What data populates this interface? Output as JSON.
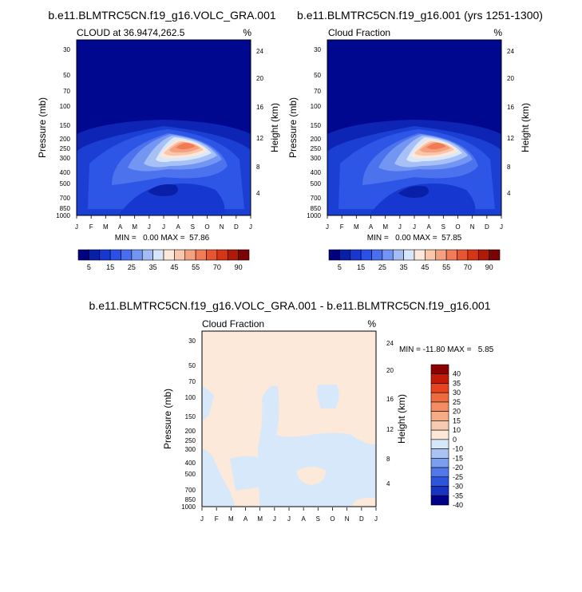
{
  "chart_data": [
    {
      "type": "contour",
      "title": "b.e11.BLMTRC5CN.f19_g16.VOLC_GRA.001",
      "subtitle_left": "CLOUD at 36.9474,262.5",
      "subtitle_right": "%",
      "ylabel": "Pressure (mb)",
      "ylabel_right": "Height (km)",
      "stats": "MIN =   0.00 MAX =  57.86",
      "min": 0.0,
      "max": 57.86
    },
    {
      "type": "contour",
      "title": "b.e11.BLMTRC5CN.f19_g16.001 (yrs 1251-1300)",
      "subtitle_left": "Cloud Fraction",
      "subtitle_right": "%",
      "ylabel": "Pressure (mb)",
      "ylabel_right": "Height (km)",
      "stats": "MIN =   0.00 MAX =  57.85",
      "min": 0.0,
      "max": 57.85
    },
    {
      "type": "contour",
      "title": "b.e11.BLMTRC5CN.f19_g16.VOLC_GRA.001 - b.e11.BLMTRC5CN.f19_g16.001",
      "subtitle_left": "Cloud Fraction",
      "subtitle_right": "%",
      "ylabel": "Pressure (mb)",
      "ylabel_right": "Height (km)",
      "stats": "MIN = -11.80 MAX =   5.85",
      "min": -11.8,
      "max": 5.85
    }
  ],
  "axes": {
    "months": [
      "J",
      "F",
      "M",
      "A",
      "M",
      "J",
      "J",
      "A",
      "S",
      "O",
      "N",
      "D",
      "J"
    ],
    "pressure_ticks": [
      "30",
      "50",
      "70",
      "100",
      "150",
      "200",
      "250",
      "300",
      "400",
      "500",
      "700",
      "850",
      "1000"
    ],
    "pressure_values": [
      30,
      50,
      70,
      100,
      150,
      200,
      250,
      300,
      400,
      500,
      700,
      850,
      1000
    ],
    "height_ticks_top": [
      "24",
      "20",
      "16",
      "12",
      "8",
      "4"
    ],
    "height_ticks_bottom": [
      "24",
      "20",
      "16",
      "12",
      "8",
      "4"
    ]
  },
  "colorbar_top": {
    "labels": [
      "5",
      "15",
      "25",
      "35",
      "45",
      "55",
      "70",
      "90"
    ],
    "colors": [
      "#000080",
      "#0a1fa8",
      "#1637d0",
      "#2a50e8",
      "#4a6ef0",
      "#7394f2",
      "#a3bcf6",
      "#d8e6fb",
      "#fde7d8",
      "#f9c6ab",
      "#f5a07e",
      "#f07b55",
      "#e85530",
      "#d63518",
      "#b01a08",
      "#7a0404"
    ]
  },
  "colorbar_diff": {
    "labels": [
      "40",
      "35",
      "30",
      "25",
      "20",
      "15",
      "10",
      "0",
      "-10",
      "-15",
      "-20",
      "-25",
      "-30",
      "-35",
      "-40"
    ],
    "colors": [
      "#8b0000",
      "#c41a0a",
      "#e8431f",
      "#f06a40",
      "#f48c63",
      "#f6ab87",
      "#f8cbb0",
      "#fde8d8",
      "#d7e7fa",
      "#a9c3f3",
      "#7c9ef0",
      "#5178ea",
      "#2c54dd",
      "#1633c1",
      "#00008b"
    ]
  },
  "colors": {
    "dark_blue": "#00088f",
    "positive_fill": "#fde9d9",
    "negative_fill": "#d7e8fb"
  }
}
